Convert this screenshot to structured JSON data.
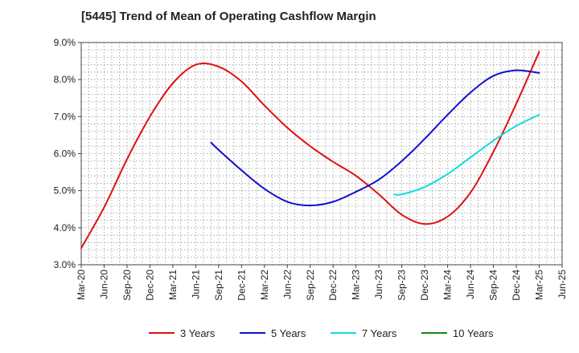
{
  "chart_data": {
    "type": "line",
    "title": "[5445]  Trend of Mean of Operating Cashflow Margin",
    "xlabel": "",
    "ylabel": "",
    "x_ticks": [
      "Mar-20",
      "Jun-20",
      "Sep-20",
      "Dec-20",
      "Mar-21",
      "Jun-21",
      "Sep-21",
      "Dec-21",
      "Mar-22",
      "Jun-22",
      "Sep-22",
      "Dec-22",
      "Mar-23",
      "Jun-23",
      "Sep-23",
      "Dec-23",
      "Mar-24",
      "Jun-24",
      "Sep-24",
      "Dec-24",
      "Mar-25",
      "Jun-25"
    ],
    "y_ticks": [
      "3.0%",
      "4.0%",
      "5.0%",
      "6.0%",
      "7.0%",
      "8.0%",
      "9.0%"
    ],
    "ylim": [
      3.0,
      9.0
    ],
    "y_unit": "%",
    "grid": true,
    "legend_position": "bottom",
    "series": [
      {
        "name": "3 Years",
        "color": "#dd1111",
        "x": [
          "Mar-20",
          "Jun-20",
          "Sep-20",
          "Dec-20",
          "Mar-21",
          "Jun-21",
          "Sep-21",
          "Dec-21",
          "Mar-22",
          "Jun-22",
          "Sep-22",
          "Dec-22",
          "Mar-23",
          "Jun-23",
          "Sep-23",
          "Dec-23",
          "Mar-24",
          "Jun-24",
          "Sep-24",
          "Dec-24",
          "Mar-25"
        ],
        "values": [
          3.45,
          4.55,
          5.85,
          7.0,
          7.9,
          8.4,
          8.35,
          7.95,
          7.3,
          6.7,
          6.2,
          5.78,
          5.4,
          4.9,
          4.35,
          4.1,
          4.3,
          4.95,
          6.05,
          7.35,
          8.75
        ]
      },
      {
        "name": "5 Years",
        "color": "#1111cc",
        "x": [
          "Aug-21",
          "Sep-21",
          "Dec-21",
          "Mar-22",
          "Jun-22",
          "Sep-22",
          "Dec-22",
          "Mar-23",
          "Jun-23",
          "Sep-23",
          "Dec-23",
          "Mar-24",
          "Jun-24",
          "Sep-24",
          "Dec-24",
          "Mar-25"
        ],
        "values": [
          6.3,
          6.1,
          5.55,
          5.05,
          4.7,
          4.6,
          4.7,
          4.97,
          5.3,
          5.8,
          6.4,
          7.05,
          7.65,
          8.1,
          8.25,
          8.18
        ]
      },
      {
        "name": "7 Years",
        "color": "#11dddd",
        "x": [
          "Aug-23",
          "Sep-23",
          "Dec-23",
          "Mar-24",
          "Jun-24",
          "Sep-24",
          "Dec-24",
          "Mar-25"
        ],
        "values": [
          4.9,
          4.9,
          5.1,
          5.45,
          5.9,
          6.35,
          6.75,
          7.05
        ]
      },
      {
        "name": "10 Years",
        "color": "#118811",
        "x": [],
        "values": []
      }
    ]
  }
}
